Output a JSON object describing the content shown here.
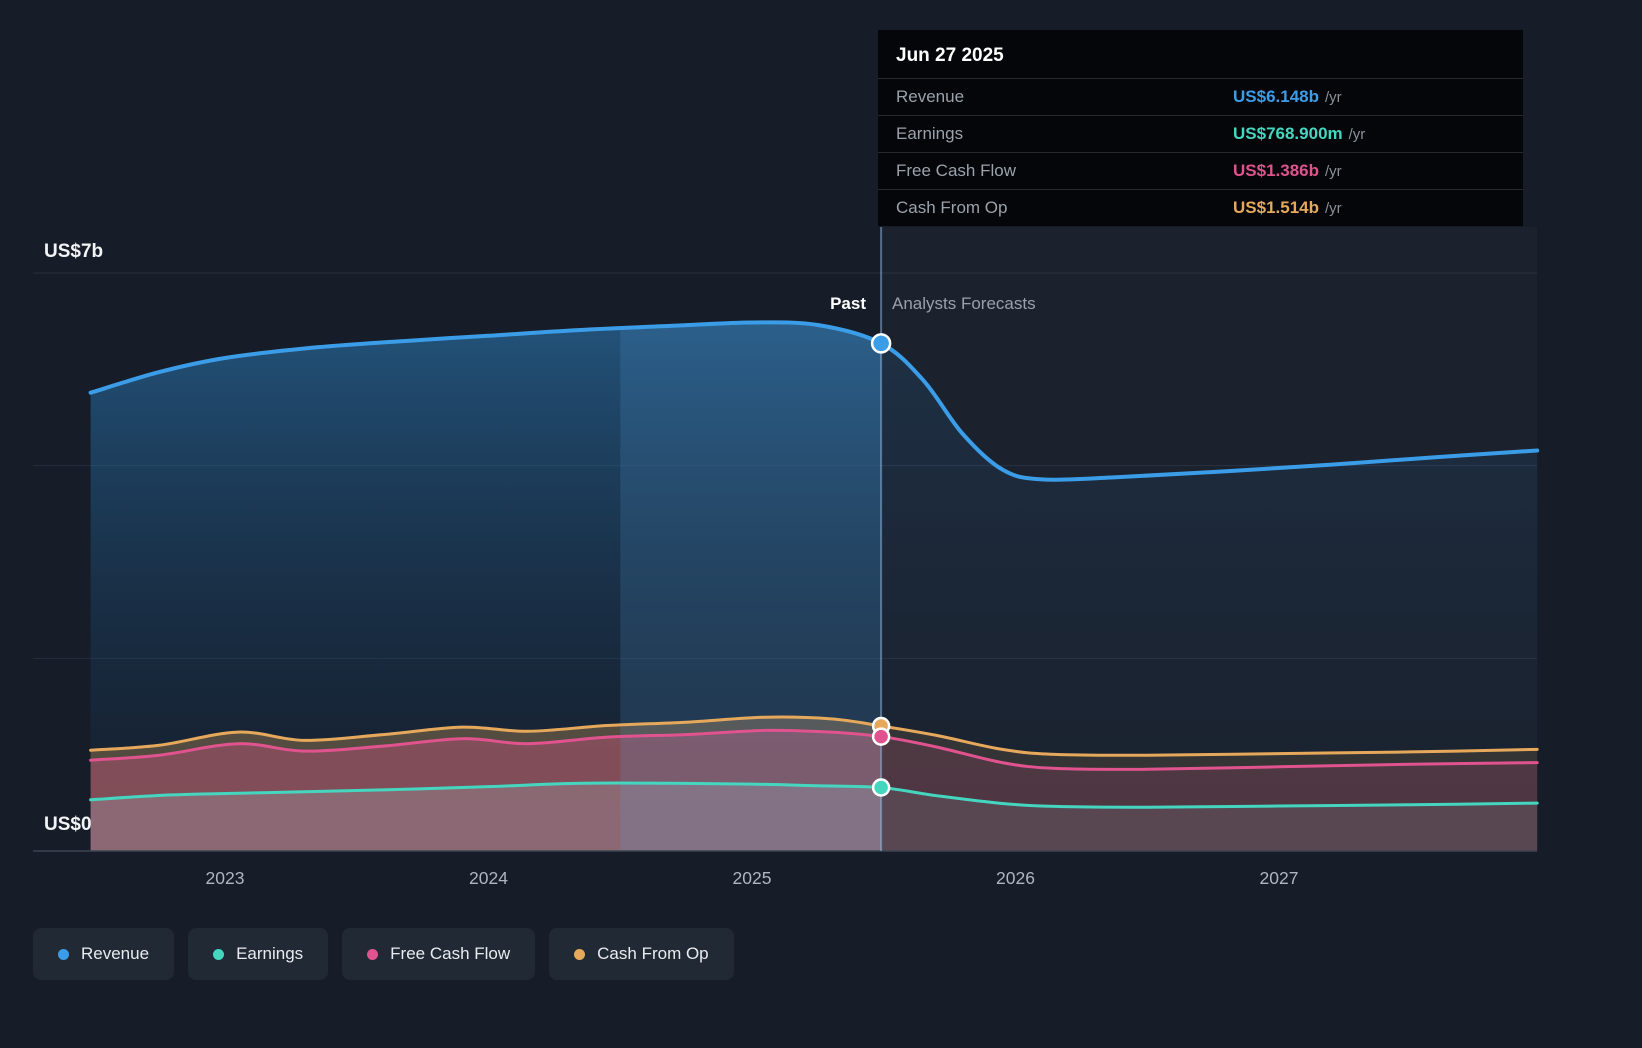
{
  "tooltip": {
    "date": "Jun 27 2025",
    "rows": [
      {
        "label": "Revenue",
        "value": "US$6.148b",
        "suffix": "/yr",
        "color": "#3b9de8"
      },
      {
        "label": "Earnings",
        "value": "US$768.900m",
        "suffix": "/yr",
        "color": "#45d6c0"
      },
      {
        "label": "Free Cash Flow",
        "value": "US$1.386b",
        "suffix": "/yr",
        "color": "#e0538f"
      },
      {
        "label": "Cash From Op",
        "value": "US$1.514b",
        "suffix": "/yr",
        "color": "#e6a95c"
      }
    ]
  },
  "labels": {
    "past": "Past",
    "forecast": "Analysts Forecasts"
  },
  "axis": {
    "y_top_label": "US$7b",
    "y_zero_label": "US$0"
  },
  "legend": [
    {
      "label": "Revenue",
      "color": "#3b9de8"
    },
    {
      "label": "Earnings",
      "color": "#45d6c0"
    },
    {
      "label": "Free Cash Flow",
      "color": "#e0538f"
    },
    {
      "label": "Cash From Op",
      "color": "#e6a95c"
    }
  ],
  "chart_data": {
    "type": "area",
    "x_unit": "decimal_year",
    "xlim": [
      2022.49,
      2027.98
    ],
    "ylim": [
      0,
      7
    ],
    "x_ticks": [
      2023,
      2024,
      2025,
      2026,
      2027
    ],
    "gridline_values": [
      2.333,
      4.667,
      7
    ],
    "divider_x": 2025.49,
    "divider_date": "Jun 27 2025",
    "highlight_band": [
      2024.5,
      2025.49
    ],
    "values_at_divider": {
      "Revenue": "US$6.148b /yr",
      "Earnings": "US$768.900m /yr",
      "Free Cash Flow": "US$1.386b /yr",
      "Cash From Op": "US$1.514b /yr"
    },
    "series": [
      {
        "name": "Revenue",
        "color": "#3b9de8",
        "stroke_width": 4,
        "points": [
          [
            2022.49,
            5.55
          ],
          [
            2022.75,
            5.8
          ],
          [
            2023.0,
            5.97
          ],
          [
            2023.35,
            6.1
          ],
          [
            2023.7,
            6.18
          ],
          [
            2024.0,
            6.24
          ],
          [
            2024.35,
            6.31
          ],
          [
            2024.7,
            6.36
          ],
          [
            2025.0,
            6.4
          ],
          [
            2025.25,
            6.37
          ],
          [
            2025.49,
            6.148
          ],
          [
            2025.65,
            5.7
          ],
          [
            2025.8,
            5.05
          ],
          [
            2025.95,
            4.62
          ],
          [
            2026.1,
            4.5
          ],
          [
            2026.4,
            4.53
          ],
          [
            2026.8,
            4.6
          ],
          [
            2027.2,
            4.68
          ],
          [
            2027.6,
            4.77
          ],
          [
            2027.98,
            4.85
          ]
        ]
      },
      {
        "name": "Cash From Op",
        "color": "#e6a95c",
        "stroke_width": 3,
        "points": [
          [
            2022.49,
            1.22
          ],
          [
            2022.75,
            1.28
          ],
          [
            2023.05,
            1.44
          ],
          [
            2023.3,
            1.34
          ],
          [
            2023.6,
            1.41
          ],
          [
            2023.9,
            1.5
          ],
          [
            2024.15,
            1.45
          ],
          [
            2024.45,
            1.52
          ],
          [
            2024.75,
            1.56
          ],
          [
            2025.05,
            1.62
          ],
          [
            2025.3,
            1.6
          ],
          [
            2025.49,
            1.514
          ],
          [
            2025.7,
            1.4
          ],
          [
            2025.95,
            1.23
          ],
          [
            2026.15,
            1.17
          ],
          [
            2026.5,
            1.16
          ],
          [
            2027.0,
            1.18
          ],
          [
            2027.5,
            1.2
          ],
          [
            2027.98,
            1.23
          ]
        ]
      },
      {
        "name": "Free Cash Flow",
        "color": "#e0538f",
        "stroke_width": 3,
        "points": [
          [
            2022.49,
            1.1
          ],
          [
            2022.75,
            1.16
          ],
          [
            2023.05,
            1.3
          ],
          [
            2023.3,
            1.21
          ],
          [
            2023.6,
            1.27
          ],
          [
            2023.9,
            1.36
          ],
          [
            2024.15,
            1.3
          ],
          [
            2024.45,
            1.38
          ],
          [
            2024.75,
            1.41
          ],
          [
            2025.05,
            1.46
          ],
          [
            2025.3,
            1.44
          ],
          [
            2025.49,
            1.386
          ],
          [
            2025.7,
            1.26
          ],
          [
            2025.95,
            1.07
          ],
          [
            2026.15,
            1.0
          ],
          [
            2026.5,
            0.99
          ],
          [
            2027.0,
            1.02
          ],
          [
            2027.5,
            1.05
          ],
          [
            2027.98,
            1.07
          ]
        ]
      },
      {
        "name": "Earnings",
        "color": "#45d6c0",
        "stroke_width": 3,
        "points": [
          [
            2022.49,
            0.62
          ],
          [
            2022.8,
            0.68
          ],
          [
            2023.2,
            0.71
          ],
          [
            2023.6,
            0.74
          ],
          [
            2024.0,
            0.78
          ],
          [
            2024.35,
            0.82
          ],
          [
            2024.7,
            0.82
          ],
          [
            2025.0,
            0.81
          ],
          [
            2025.25,
            0.79
          ],
          [
            2025.49,
            0.7689
          ],
          [
            2025.7,
            0.67
          ],
          [
            2025.95,
            0.575
          ],
          [
            2026.15,
            0.54
          ],
          [
            2026.5,
            0.53
          ],
          [
            2027.0,
            0.545
          ],
          [
            2027.5,
            0.56
          ],
          [
            2027.98,
            0.58
          ]
        ]
      }
    ]
  }
}
